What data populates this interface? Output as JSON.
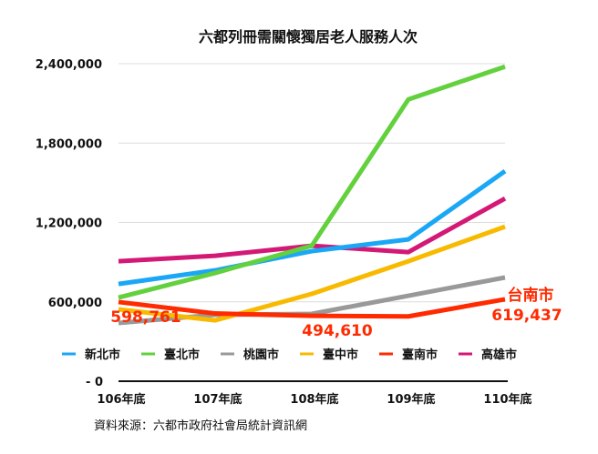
{
  "chart_data": {
    "type": "line",
    "title": "六都列冊需關懷獨居老人服務人次",
    "categories": [
      "106年底",
      "107年底",
      "108年底",
      "109年底",
      "110年底"
    ],
    "ylim": [
      0,
      2400000
    ],
    "yticks": [
      0,
      600000,
      1200000,
      1800000,
      2400000
    ],
    "ytick_labels": [
      "- 0",
      "600,000",
      "1,200,000",
      "1,800,000",
      "2,400,000"
    ],
    "grid": true,
    "legend_position": "bottom",
    "series": [
      {
        "name": "新北市",
        "color": "#1aa7f5",
        "values": [
          735000,
          838000,
          983000,
          1072000,
          1588000
        ]
      },
      {
        "name": "臺北市",
        "color": "#63d13e",
        "values": [
          632000,
          818000,
          1024000,
          2130000,
          2378000
        ]
      },
      {
        "name": "桃園市",
        "color": "#999999",
        "values": [
          440000,
          502000,
          509000,
          646000,
          784000
        ]
      },
      {
        "name": "臺中市",
        "color": "#f8ba00",
        "values": [
          543000,
          460000,
          660000,
          907000,
          1168000
        ]
      },
      {
        "name": "臺南市",
        "color": "#ff2a00",
        "values": [
          598761,
          512000,
          494610,
          490000,
          619437
        ]
      },
      {
        "name": "高雄市",
        "color": "#d31876",
        "values": [
          907000,
          948000,
          1024000,
          976000,
          1381000
        ]
      }
    ],
    "annotations": {
      "first": "598,761",
      "middle": "494,610",
      "end_label": "台南市",
      "end_value": "619,437",
      "color": "#ff2a00"
    },
    "source": "資料來源：六都市政府社會局統計資訊網"
  }
}
